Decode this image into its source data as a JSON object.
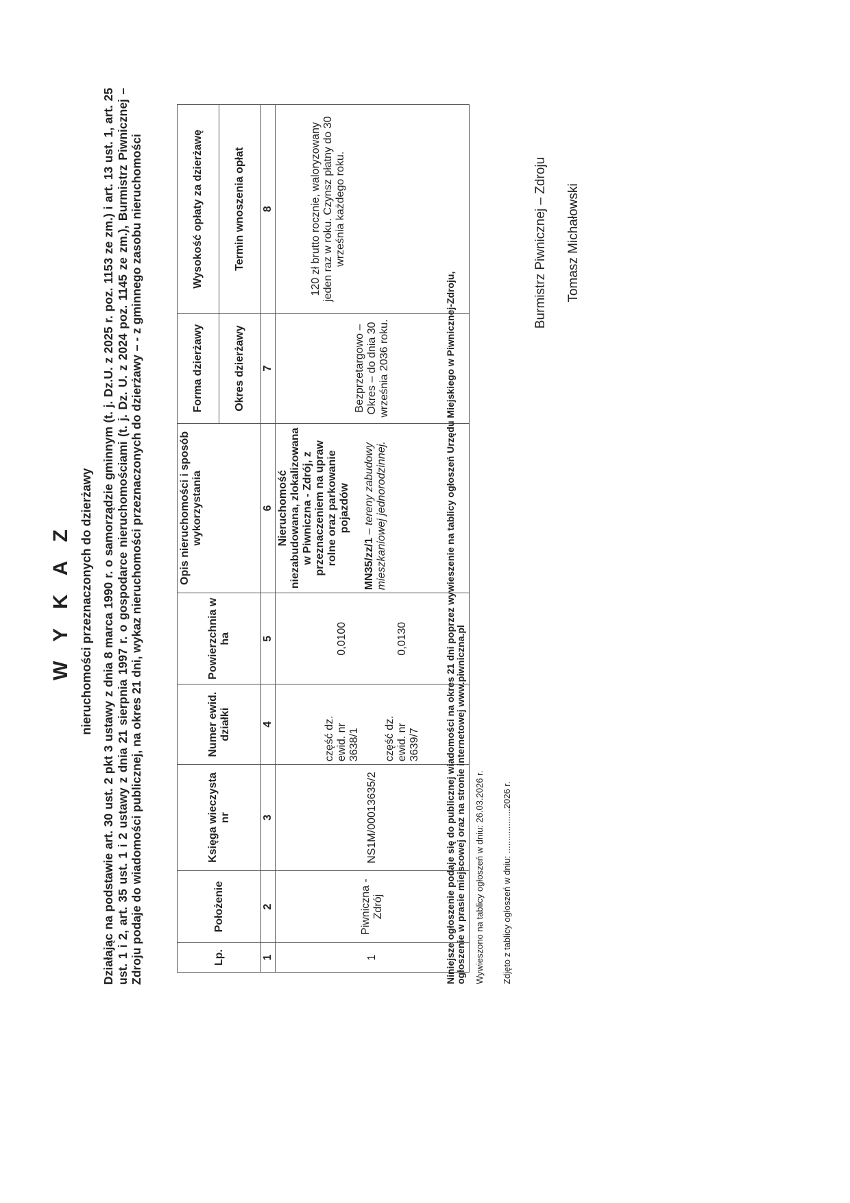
{
  "title": "W Y K A Z",
  "subtitle": "nieruchomości przeznaczonych do dzierżawy",
  "intro": "Działając na podstawie art. 30 ust. 2 pkt 3 ustawy z dnia 8 marca 1990 r. o samorządzie gminnym (t. j. Dz.U. z 2025 r. poz. 1153 ze zm.) i art. 13 ust. 1, art. 25 ust. 1 i 2, art. 35 ust. 1 i 2 ustawy z dnia 21 sierpnia 1997 r. o gospodarce nieruchomościami (t. j. Dz. U. z 2024 poz. 1145 ze zm.), Burmistrz Piwnicznej – Zdroju podaje do wiadomości publicznej, na okres 21 dni, wykaz nieruchomości przeznaczonych do dzierżawy – - z gminnego zasobu nieruchomości",
  "table": {
    "headers": {
      "lp": "Lp.",
      "polozenie": "Położenie",
      "ksiega": "Księga wieczysta nr",
      "numer": "Numer ewid. działki",
      "powierzchnia": "Powierzchnia w ha",
      "opis": "Opis nieruchomości i sposób wykorzystania",
      "forma": "Forma dzierżawy",
      "okres": "Okres dzierżawy",
      "wysokosc": "Wysokość opłaty za dzierżawę",
      "termin": "Termin wnoszenia opłat"
    },
    "numbers": [
      "1",
      "2",
      "3",
      "4",
      "5",
      "6",
      "7",
      "8"
    ],
    "row": {
      "lp": "1",
      "polozenie": "Piwniczna - Zdrój",
      "ksiega": "NS1M/00013635/2",
      "dzialka1": "część dz. ewid. nr 3638/1",
      "dzialka2": "część dz. ewid. nr 3639/7",
      "pow1": "0,0100",
      "pow2": "0,0130",
      "opis": "Nieruchomość niezabudowana, zlokalizowana w Piwniczna - Zdrój, z przeznaczeniem na upraw rolne oraz parkowanie pojazdów",
      "mn_code": "MN35/zz/1",
      "mn_desc": " – tereny zabudowy mieszkaniowej jednorodzinnej.",
      "forma": "Bezprzetargowo – Okres – do dnia 30 września 2036 roku.",
      "oplata": "120 zł brutto rocznie, waloryzowany jeden raz w roku. Czynsz płatny do 30 września każdego roku."
    }
  },
  "footer": {
    "notice_line1": "Niniejsze ogłoszenie podaje się do publicznej wiadomości na okres 21 dni poprzez wywieszenie na tablicy ogłoszeń Urzędu Miejskiego w Piwnicznej-Zdroju,",
    "notice_line2": "ogłoszenie w prasie miejscowej oraz na stronie internetowej www.piwniczna.pl",
    "posted": "Wywieszono na tablicy ogłoszeń w dniu: 26.03.2026 r.",
    "removed": "Zdjęto z tablicy ogłoszeń w dniu:   ..................2026 r."
  },
  "signature": {
    "office": "Burmistrz Piwnicznej – Zdroju",
    "name": "Tomasz Michałowski"
  }
}
